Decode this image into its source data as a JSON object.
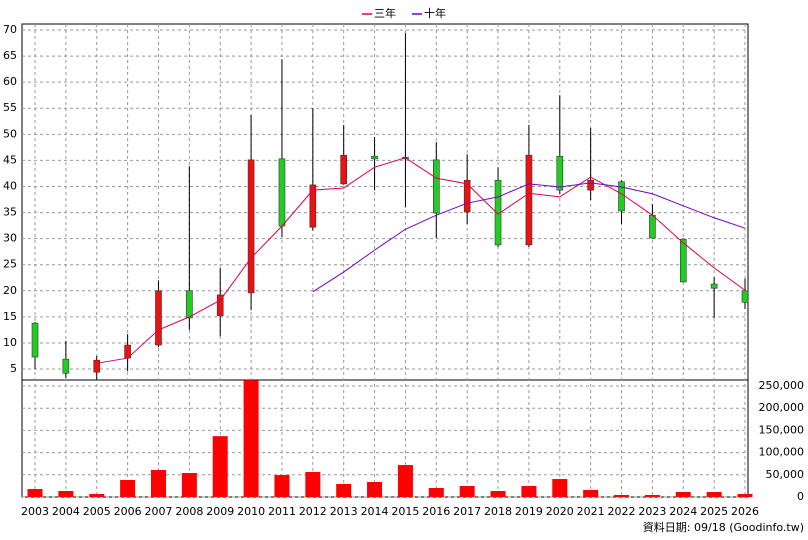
{
  "chart_data": {
    "type": "candlestick",
    "categories": [
      "2003",
      "2004",
      "2005",
      "2006",
      "2007",
      "2008",
      "2009",
      "2010",
      "2011",
      "2012",
      "2013",
      "2014",
      "2015",
      "2016",
      "2017",
      "2018",
      "2019",
      "2020",
      "2021",
      "2022",
      "2023",
      "2024",
      "2025",
      "2026"
    ],
    "open": [
      13.8,
      6.9,
      4.4,
      7.1,
      9.6,
      20,
      15.2,
      19.6,
      45.3,
      32.2,
      40.5,
      45.8,
      45.6,
      45.1,
      35.1,
      41.2,
      28.8,
      45.8,
      39.3,
      40.9,
      34.5,
      29.9,
      21.3,
      20
    ],
    "high": [
      14,
      10.4,
      7.5,
      11.7,
      22,
      43.9,
      24.4,
      53.7,
      64.4,
      55,
      51.8,
      49.5,
      69.4,
      48.5,
      46.2,
      43.7,
      51.8,
      57.5,
      51.2,
      41.2,
      36.6,
      29.9,
      22.6,
      22.3
    ],
    "low": [
      5,
      3.3,
      2.9,
      4.6,
      9.2,
      12.5,
      11.3,
      16.3,
      30.3,
      31.6,
      40.3,
      39.3,
      36,
      30.1,
      32.8,
      28.4,
      28.4,
      38.6,
      37.4,
      32.8,
      30.1,
      21.7,
      14.8,
      16.5
    ],
    "close": [
      7.3,
      4.2,
      6.7,
      9.6,
      20,
      14.8,
      19.2,
      45.1,
      32.4,
      40.3,
      46,
      45.3,
      45.3,
      34.9,
      41.2,
      28.8,
      46,
      39.3,
      41.2,
      35.3,
      30.1,
      21.7,
      20.5,
      17.8
    ],
    "up_color": "#ee1111",
    "down_color": "#22cc22",
    "ylim": [
      2.9,
      71.15
    ],
    "yticks": [
      5,
      10,
      15,
      20,
      25,
      30,
      35,
      40,
      45,
      50,
      55,
      60,
      65,
      70
    ],
    "grid": true,
    "legend": "top",
    "series": [
      {
        "name": "三年",
        "color": "#dd0055",
        "values": [
          null,
          null,
          6.1,
          7.1,
          12.5,
          15,
          18.2,
          26.3,
          32.4,
          39.3,
          39.7,
          43.7,
          45.5,
          41.6,
          40.5,
          34.7,
          38.7,
          38,
          41.8,
          38.6,
          34.5,
          29.2,
          24.4,
          20.1
        ]
      },
      {
        "name": "十年",
        "color": "#7700cc",
        "values": [
          null,
          null,
          null,
          null,
          null,
          null,
          null,
          null,
          null,
          19.8,
          23.6,
          27.8,
          31.8,
          34.5,
          36.8,
          38,
          40.5,
          39.9,
          40.7,
          39.9,
          38.6,
          36.3,
          34,
          32
        ]
      }
    ],
    "volume": {
      "color": "#ff0000",
      "values": [
        18000,
        13500,
        6800,
        38300,
        60800,
        54000,
        137000,
        263000,
        49500,
        56300,
        29300,
        33800,
        72000,
        20300,
        24800,
        13500,
        24800,
        40500,
        15800,
        4500,
        4500,
        11300,
        11300,
        6800
      ],
      "ylim": [
        0,
        263500
      ],
      "yticks": [
        0,
        {
          "value": 50000,
          "label": "50,000"
        },
        {
          "value": 100000,
          "label": "100,000"
        },
        {
          "value": 150000,
          "label": "150,000"
        },
        {
          "value": 200000,
          "label": "200,000"
        },
        {
          "value": 250000,
          "label": "250,000"
        }
      ]
    },
    "footnote": "資料日期: 09/18 (Goodinfo.tw)"
  }
}
